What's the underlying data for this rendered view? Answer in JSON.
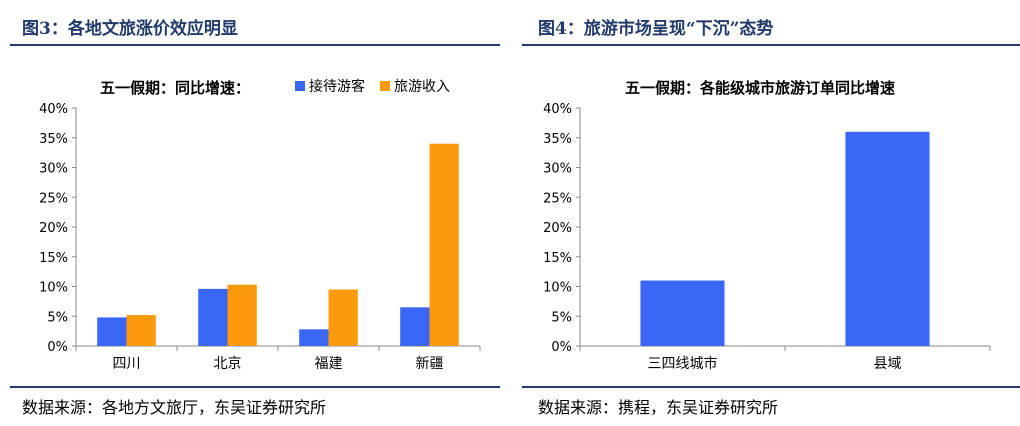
{
  "left_panel": {
    "figure_title": "图3：各地文旅涨价效应明显",
    "source": "数据来源：各地方文旅厅，东吴证券研究所"
  },
  "right_panel": {
    "figure_title": "图4：旅游市场呈现“下沉”态势",
    "source": "数据来源：携程，东吴证券研究所"
  },
  "chart_data": [
    {
      "type": "bar",
      "title": "五一假期：同比增速：",
      "categories": [
        "四川",
        "北京",
        "福建",
        "新疆"
      ],
      "series": [
        {
          "name": "接待游客",
          "values": [
            0.048,
            0.096,
            0.028,
            0.065
          ],
          "color": "#3a66f5"
        },
        {
          "name": "旅游收入",
          "values": [
            0.052,
            0.103,
            0.095,
            0.34
          ],
          "color": "#fb9a0c"
        }
      ],
      "ylim": [
        0,
        0.4
      ],
      "yticks": [
        "0%",
        "5%",
        "10%",
        "15%",
        "20%",
        "25%",
        "30%",
        "35%",
        "40%"
      ],
      "legend_position": "top-right",
      "grid": false
    },
    {
      "type": "bar",
      "title": "五一假期：各能级城市旅游订单同比增速",
      "categories": [
        "三四线城市",
        "县域"
      ],
      "series": [
        {
          "values": [
            0.11,
            0.36
          ],
          "color": "#3a66f5"
        }
      ],
      "ylim": [
        0,
        0.4
      ],
      "yticks": [
        "0%",
        "5%",
        "10%",
        "15%",
        "20%",
        "25%",
        "30%",
        "35%",
        "40%"
      ],
      "grid": false
    }
  ]
}
